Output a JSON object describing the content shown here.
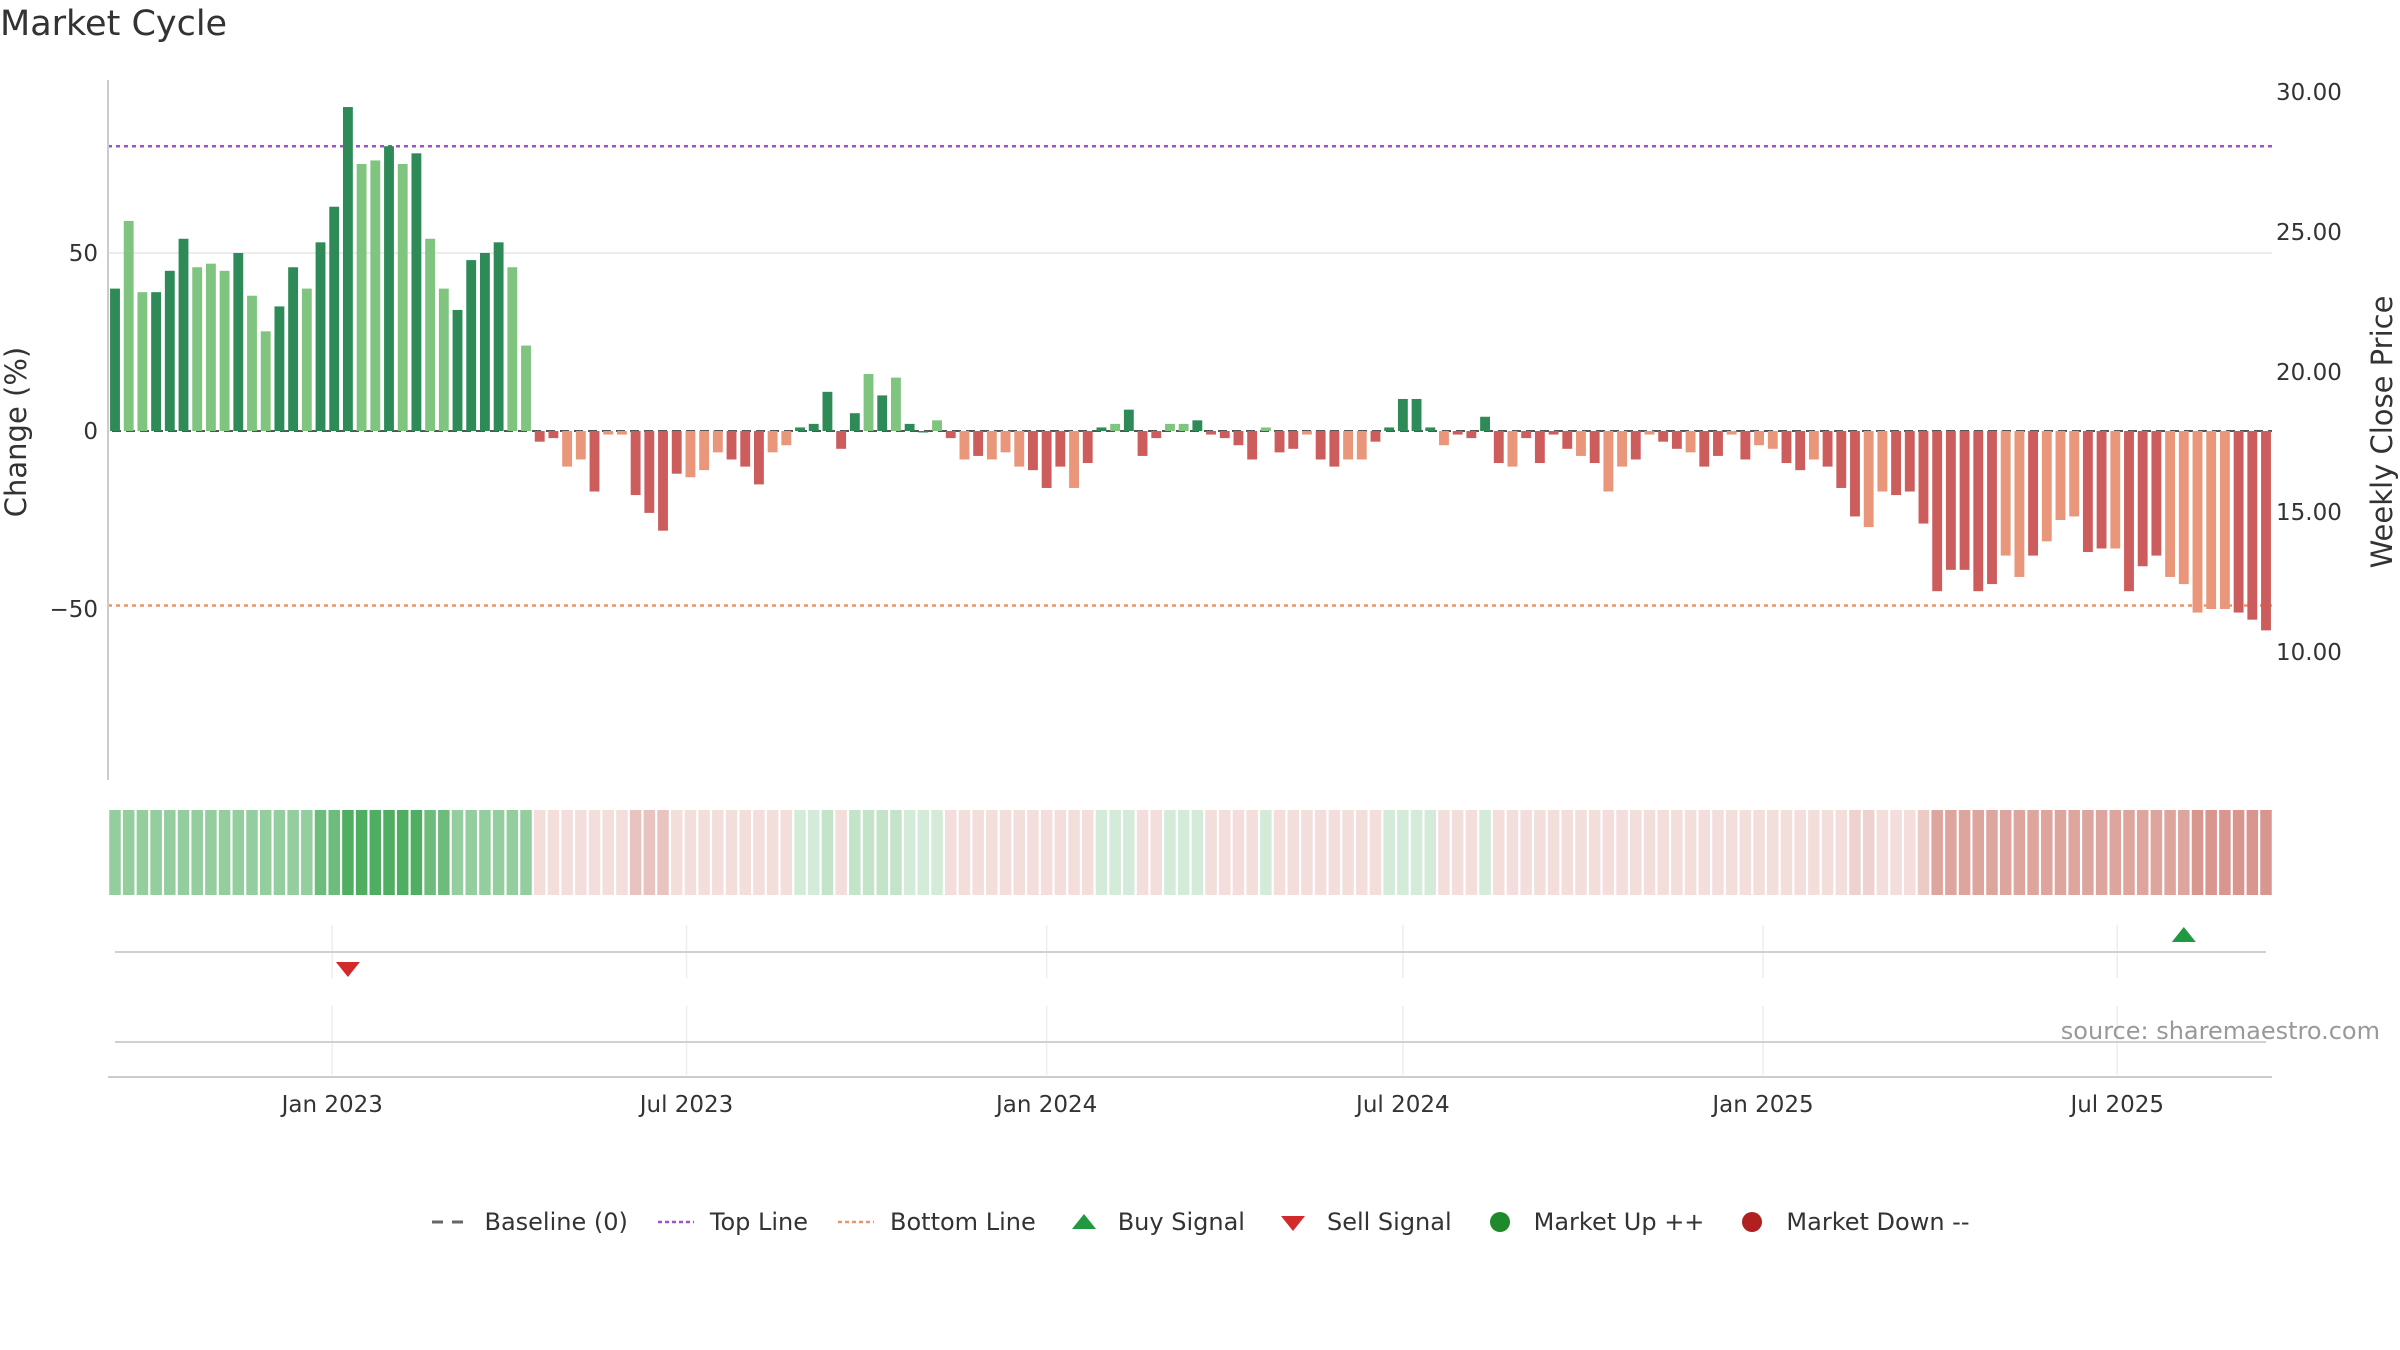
{
  "title": "Market Cycle",
  "source_text": "source: sharemaestro.com",
  "legend": [
    {
      "label": "Baseline (0)",
      "icon": "dash-gray",
      "color": "#666666"
    },
    {
      "label": "Top Line",
      "icon": "dotted-purple",
      "color": "#a050d0"
    },
    {
      "label": "Bottom Line",
      "icon": "dotted-orange",
      "color": "#e8956a"
    },
    {
      "label": "Buy Signal",
      "icon": "triangle-up",
      "color": "#1f9a40"
    },
    {
      "label": "Sell Signal",
      "icon": "triangle-down",
      "color": "#d22a2a"
    },
    {
      "label": "Market Up ++",
      "icon": "dot-green",
      "color": "#1f8a2a"
    },
    {
      "label": "Market Down --",
      "icon": "dot-red",
      "color": "#b02020"
    }
  ],
  "chart_data": {
    "type": "bar",
    "ylabel": "Change (%)",
    "y2label": "Weekly Close Price",
    "ylim": [
      -98,
      98
    ],
    "yticks": [
      50,
      0,
      -50
    ],
    "ytick_labels": [
      "50",
      "0",
      "−50"
    ],
    "y2lim": [
      5,
      30
    ],
    "y2ticks": [
      30,
      25,
      20,
      15,
      10
    ],
    "y2tick_labels": [
      "30.00",
      "25.00",
      "20.00",
      "15.00",
      "10.00"
    ],
    "top_line": 80,
    "bottom_line": -49,
    "x_start": "2022-09-12",
    "x_step_days": 7,
    "xticks": [
      "2023-01-01",
      "2023-07-01",
      "2024-01-01",
      "2024-07-01",
      "2025-01-01",
      "2025-07-01"
    ],
    "xtick_labels": [
      "Jan 2023",
      "Jul 2023",
      "Jan 2024",
      "Jul 2024",
      "Jan 2025",
      "Jul 2025"
    ],
    "colors": {
      "dark_green": "#2e8b57",
      "light_green": "#7fc47f",
      "dark_red": "#cd5c5c",
      "light_red": "#e9967a"
    },
    "values": [
      40,
      59,
      39,
      39,
      45,
      54,
      46,
      47,
      45,
      50,
      38,
      28,
      35,
      46,
      40,
      53,
      63,
      91,
      75,
      76,
      80,
      75,
      78,
      54,
      40,
      34,
      48,
      50,
      53,
      46,
      24,
      -3,
      -2,
      -10,
      -8,
      -17,
      -1,
      -1,
      -18,
      -23,
      -28,
      -12,
      -13,
      -11,
      -6,
      -8,
      -10,
      -15,
      -6,
      -4,
      1,
      2,
      11,
      -5,
      5,
      16,
      10,
      15,
      2,
      0,
      3,
      -2,
      -8,
      -7,
      -8,
      -6,
      -10,
      -11,
      -16,
      -10,
      -16,
      -9,
      1,
      2,
      6,
      -7,
      -2,
      2,
      2,
      3,
      -1,
      -2,
      -4,
      -8,
      1,
      -6,
      -5,
      -1,
      -8,
      -10,
      -8,
      -8,
      -3,
      1,
      9,
      9,
      1,
      -4,
      -1,
      -2,
      4,
      -9,
      -10,
      -2,
      -9,
      -1,
      -5,
      -7,
      -9,
      -17,
      -10,
      -8,
      -1,
      -3,
      -5,
      -6,
      -10,
      -7,
      -1,
      -8,
      -4,
      -5,
      -9,
      -11,
      -8,
      -10,
      -16,
      -24,
      -27,
      -17,
      -18,
      -17,
      -26,
      -45,
      -39,
      -39,
      -45,
      -43,
      -35,
      -41,
      -35,
      -31,
      -25,
      -24,
      -34,
      -33,
      -33,
      -45,
      -38,
      -35,
      -41,
      -43,
      -51,
      -50,
      -50,
      -51,
      -53,
      -56
    ],
    "shades": "DLLDDDLLLDLLDDLDDDLLDLDLLDDDDLLDDLLDLLDDDDLLLDDDLLDDDDDLDLDDLDLDLLLDDDLDDLDDDLLDDDDDLDDLDDLLDDDDDLDDDDLDDDDLDLLDLDDLDDLDLLDDLDDDLLDDDDDDDDLLDLLLDDLDDDLLLLLDDDDDDDDLLLLLLDDDDDDDD",
    "regime_alphas": [
      0.55,
      0.55,
      0.55,
      0.55,
      0.55,
      0.55,
      0.55,
      0.55,
      0.55,
      0.55,
      0.55,
      0.55,
      0.55,
      0.55,
      0.55,
      0.75,
      0.75,
      0.9,
      0.9,
      0.9,
      0.9,
      0.9,
      0.9,
      0.75,
      0.75,
      0.55,
      0.55,
      0.55,
      0.55,
      0.55,
      0.55,
      0.22,
      0.22,
      0.22,
      0.22,
      0.22,
      0.22,
      0.22,
      0.4,
      0.4,
      0.4,
      0.22,
      0.22,
      0.22,
      0.22,
      0.22,
      0.22,
      0.22,
      0.22,
      0.22,
      0.22,
      0.22,
      0.3,
      0.22,
      0.3,
      0.3,
      0.3,
      0.3,
      0.22,
      0.22,
      0.22,
      0.22,
      0.22,
      0.22,
      0.22,
      0.22,
      0.22,
      0.22,
      0.22,
      0.22,
      0.22,
      0.22,
      0.22,
      0.22,
      0.22,
      0.22,
      0.22,
      0.22,
      0.22,
      0.22,
      0.22,
      0.22,
      0.22,
      0.22,
      0.22,
      0.22,
      0.22,
      0.22,
      0.22,
      0.22,
      0.22,
      0.22,
      0.22,
      0.22,
      0.22,
      0.22,
      0.22,
      0.22,
      0.22,
      0.22,
      0.22,
      0.22,
      0.22,
      0.22,
      0.22,
      0.22,
      0.22,
      0.22,
      0.22,
      0.22,
      0.22,
      0.22,
      0.22,
      0.22,
      0.22,
      0.22,
      0.22,
      0.22,
      0.22,
      0.22,
      0.22,
      0.22,
      0.22,
      0.22,
      0.22,
      0.22,
      0.22,
      0.3,
      0.3,
      0.22,
      0.22,
      0.22,
      0.35,
      0.6,
      0.6,
      0.6,
      0.6,
      0.6,
      0.6,
      0.6,
      0.6,
      0.6,
      0.6,
      0.6,
      0.6,
      0.6,
      0.6,
      0.6,
      0.6,
      0.6,
      0.6,
      0.6,
      0.7,
      0.7,
      0.7,
      0.7,
      0.7,
      0.7
    ],
    "sell_signals": [
      {
        "index": 17
      }
    ],
    "buy_signals": [
      {
        "index": 151
      }
    ]
  }
}
